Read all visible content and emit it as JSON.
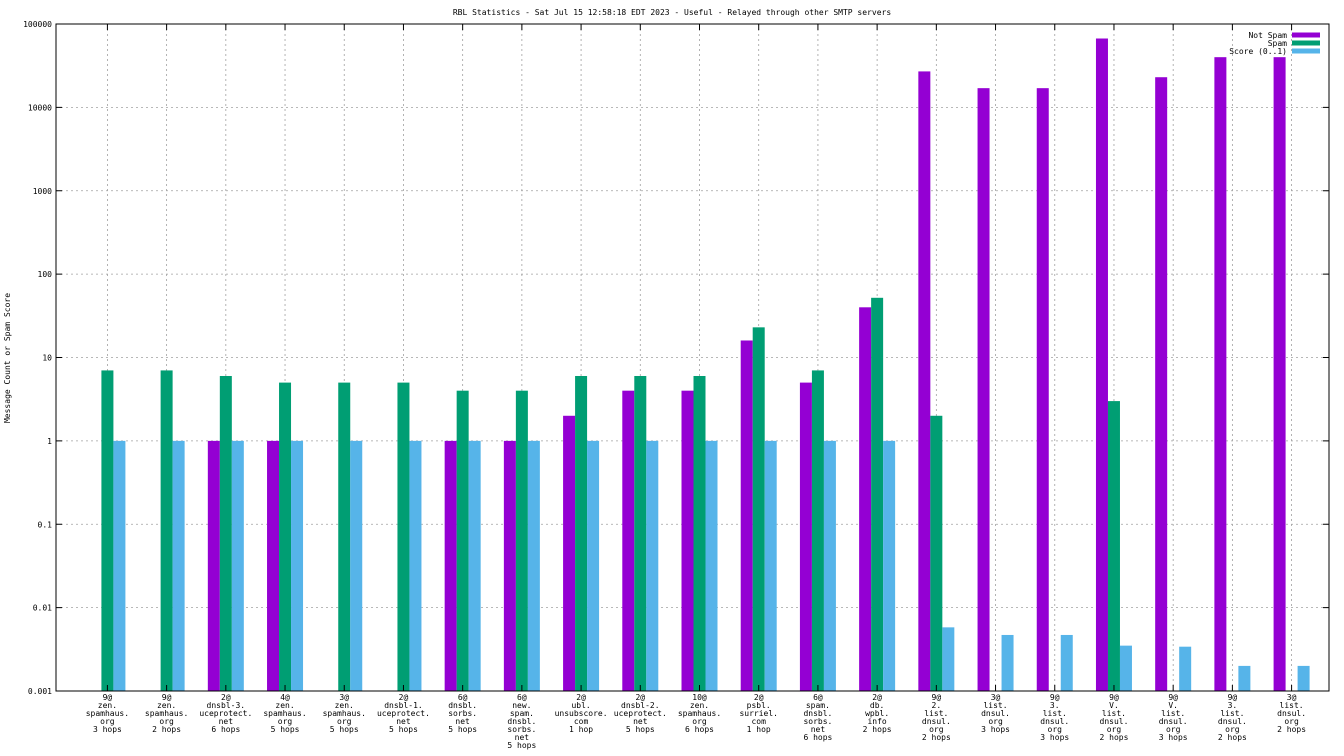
{
  "chart_data": {
    "type": "bar",
    "title": "RBL Statistics - Sat Jul 15 12:58:18 EDT 2023 - Useful - Relayed through other SMTP servers",
    "xlabel": "",
    "ylabel": "Message Count or Spam Score",
    "yscale": "log",
    "ylim": [
      0.001,
      100000
    ],
    "yticks": [
      "0.001",
      "0.01",
      "0.1",
      "1",
      "10",
      "100",
      "1000",
      "10000",
      "100000"
    ],
    "grid": true,
    "legend_position": "top-right",
    "categories": [
      [
        "9@",
        "zen.",
        "spamhaus.",
        "org",
        "3 hops"
      ],
      [
        "9@",
        "zen.",
        "spamhaus.",
        "org",
        "2 hops"
      ],
      [
        "2@",
        "dnsbl-3.",
        "uceprotect.",
        "net",
        "6 hops"
      ],
      [
        "4@",
        "zen.",
        "spamhaus.",
        "org",
        "5 hops"
      ],
      [
        "3@",
        "zen.",
        "spamhaus.",
        "org",
        "5 hops"
      ],
      [
        "2@",
        "dnsbl-1.",
        "uceprotect.",
        "net",
        "5 hops"
      ],
      [
        "6@",
        "dnsbl.",
        "sorbs.",
        "net",
        "5 hops"
      ],
      [
        "6@",
        "new.",
        "spam.",
        "dnsbl.",
        "sorbs.",
        "net",
        "5 hops"
      ],
      [
        "2@",
        "ubl.",
        "unsubscore.",
        "com",
        "1 hop"
      ],
      [
        "2@",
        "dnsbl-2.",
        "uceprotect.",
        "net",
        "5 hops"
      ],
      [
        "10@",
        "zen.",
        "spamhaus.",
        "org",
        "6 hops"
      ],
      [
        "2@",
        "psbl.",
        "surriel.",
        "com",
        "1 hop"
      ],
      [
        "6@",
        "spam.",
        "dnsbl.",
        "sorbs.",
        "net",
        "6 hops"
      ],
      [
        "2@",
        "db.",
        "wpbl.",
        "info",
        "2 hops"
      ],
      [
        "9@",
        "2.",
        "list.",
        "dnsul.",
        "org",
        "2 hops"
      ],
      [
        "3@",
        "list.",
        "dnsul.",
        "org",
        "3 hops"
      ],
      [
        "9@",
        "3.",
        "list.",
        "dnsul.",
        "org",
        "3 hops"
      ],
      [
        "9@",
        "V.",
        "list.",
        "dnsul.",
        "org",
        "2 hops"
      ],
      [
        "9@",
        "V.",
        "list.",
        "dnsul.",
        "org",
        "3 hops"
      ],
      [
        "9@",
        "3.",
        "list.",
        "dnsul.",
        "org",
        "2 hops"
      ],
      [
        "3@",
        "list.",
        "dnsul.",
        "org",
        "2 hops"
      ]
    ],
    "series": [
      {
        "name": "Not Spam",
        "color": "#9400d3",
        "values": [
          null,
          null,
          1,
          1,
          null,
          null,
          1,
          1,
          2,
          4,
          4,
          16,
          5,
          40,
          27000,
          17000,
          17000,
          67000,
          23000,
          40000,
          40000
        ]
      },
      {
        "name": "Spam",
        "color": "#009e73",
        "values": [
          7,
          7,
          6,
          5,
          5,
          5,
          4,
          4,
          6,
          6,
          6,
          23,
          7,
          52,
          2,
          null,
          null,
          3,
          null,
          null,
          null
        ]
      },
      {
        "name": "Score (0..1)",
        "color": "#56b4e9",
        "values": [
          1,
          1,
          1,
          1,
          1,
          1,
          1,
          1,
          1,
          1,
          1,
          1,
          1,
          1,
          0.0058,
          0.0047,
          0.0047,
          0.0035,
          0.0034,
          0.002,
          0.002
        ]
      }
    ]
  }
}
